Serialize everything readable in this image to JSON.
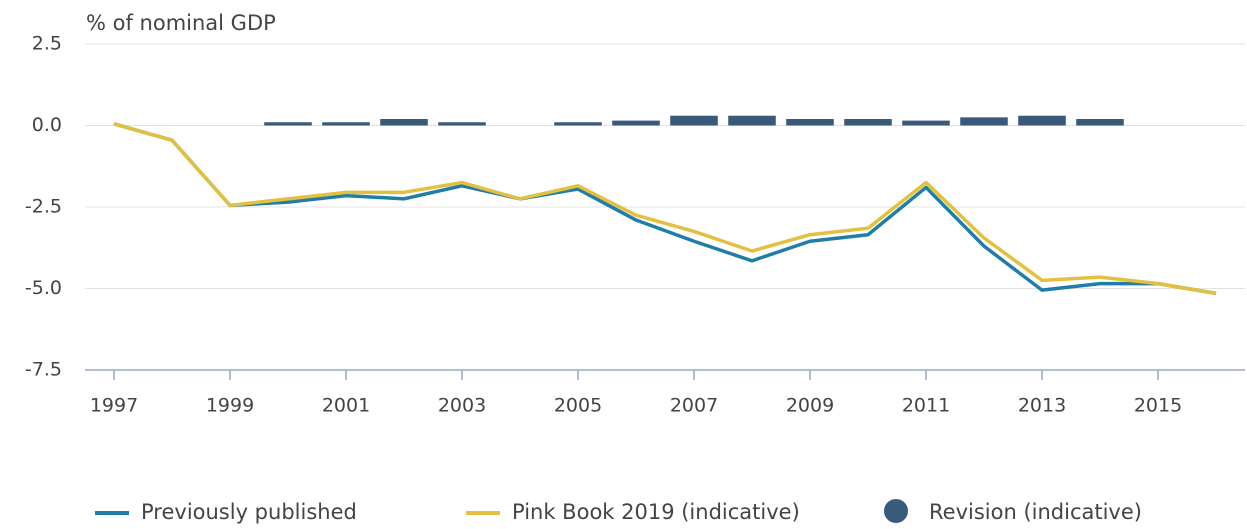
{
  "chart_data": {
    "type": "line",
    "y_axis_label": "% of nominal GDP",
    "x": [
      1997,
      1998,
      1999,
      2000,
      2001,
      2002,
      2003,
      2004,
      2005,
      2006,
      2007,
      2008,
      2009,
      2010,
      2011,
      2012,
      2013,
      2014,
      2015,
      2016
    ],
    "series": [
      {
        "name": "Previously published",
        "color": "#1f7ea8",
        "type": "line",
        "values": [
          0.05,
          -0.45,
          -2.45,
          -2.35,
          -2.15,
          -2.25,
          -1.85,
          -2.25,
          -1.95,
          -2.9,
          -3.55,
          -4.15,
          -3.55,
          -3.35,
          -1.9,
          -3.7,
          -5.05,
          -4.85,
          -4.85,
          -5.15
        ]
      },
      {
        "name": "Pink Book 2019 (indicative)",
        "color": "#e3c03e",
        "type": "line",
        "values": [
          0.05,
          -0.45,
          -2.45,
          -2.25,
          -2.05,
          -2.05,
          -1.75,
          -2.25,
          -1.85,
          -2.75,
          -3.25,
          -3.85,
          -3.35,
          -3.15,
          -1.75,
          -3.45,
          -4.75,
          -4.65,
          -4.85,
          -5.15
        ]
      },
      {
        "name": "Revision (indicative)",
        "color": "#3a5a7c",
        "type": "bar",
        "values": [
          0,
          0,
          0,
          0.1,
          0.1,
          0.2,
          0.1,
          0,
          0.1,
          0.15,
          0.3,
          0.3,
          0.2,
          0.2,
          0.15,
          0.25,
          0.3,
          0.2,
          0,
          0
        ]
      }
    ],
    "xlim": [
      1996.5,
      2016.5
    ],
    "xticks": [
      1997,
      1999,
      2001,
      2003,
      2005,
      2007,
      2009,
      2011,
      2013,
      2015
    ],
    "ylim": [
      -7.5,
      2.5
    ],
    "yticks": [
      2.5,
      {
        "value": 0,
        "label": "0.0"
      },
      -2.5,
      {
        "value": -5,
        "label": "-5.0"
      },
      -7.5
    ],
    "grid": true
  }
}
